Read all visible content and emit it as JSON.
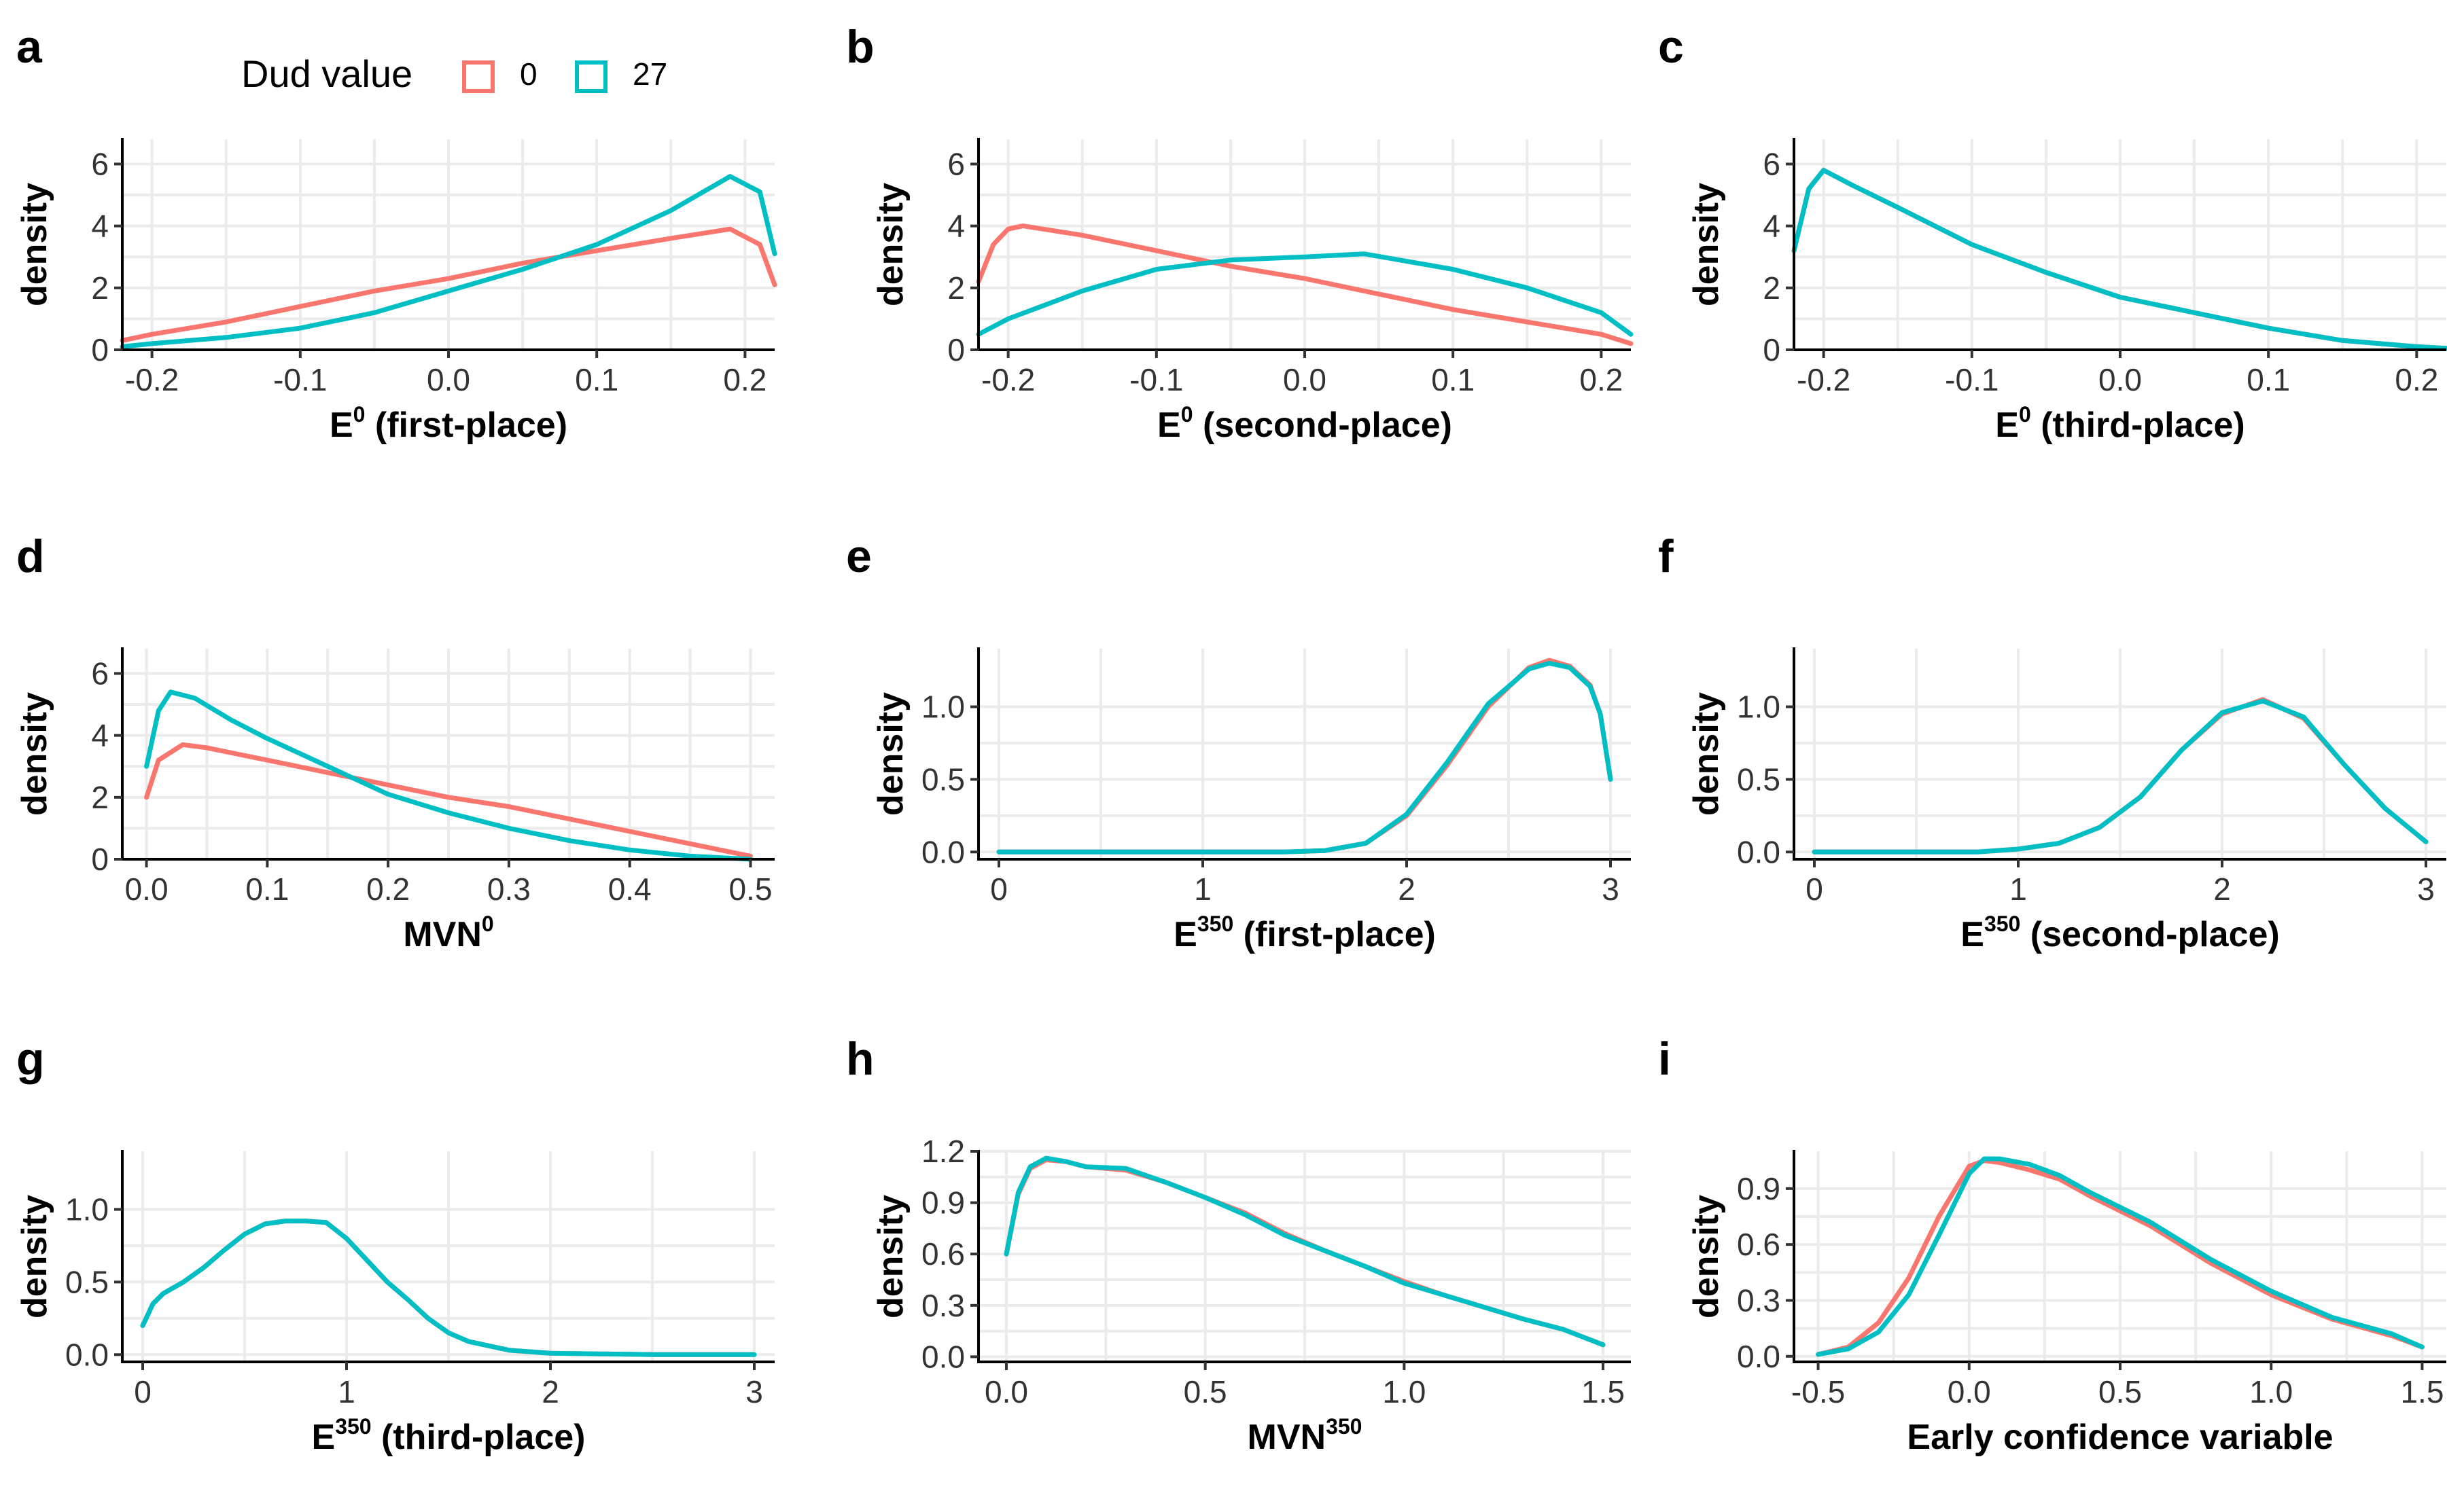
{
  "legend": {
    "title": "Dud value",
    "items": [
      {
        "label": "0",
        "color": "#F8766D"
      },
      {
        "label": "27",
        "color": "#00BFC4"
      }
    ]
  },
  "chart_data": [
    {
      "panel": "a",
      "type": "line",
      "xlabel": "E",
      "xlabel_sup": "0",
      "xlabel_rest": " (first-place)",
      "ylabel": "density",
      "xlim": [
        -0.22,
        0.22
      ],
      "ylim": [
        0,
        6.8
      ],
      "xticks": [
        -0.2,
        -0.1,
        0.0,
        0.1,
        0.2
      ],
      "xtick_labels": [
        "-0.2",
        "-0.1",
        "0.0",
        "0.1",
        "0.2"
      ],
      "yticks": [
        0,
        2,
        4,
        6
      ],
      "ytick_labels": [
        "0",
        "2",
        "4",
        "6"
      ],
      "series": [
        {
          "name": "0",
          "color": "#F8766D",
          "x": [
            -0.22,
            -0.2,
            -0.15,
            -0.1,
            -0.05,
            0.0,
            0.05,
            0.1,
            0.15,
            0.19,
            0.21,
            0.22
          ],
          "y": [
            0.3,
            0.5,
            0.9,
            1.4,
            1.9,
            2.3,
            2.8,
            3.2,
            3.6,
            3.9,
            3.4,
            2.1
          ]
        },
        {
          "name": "27",
          "color": "#00BFC4",
          "x": [
            -0.22,
            -0.2,
            -0.15,
            -0.1,
            -0.05,
            0.0,
            0.05,
            0.1,
            0.15,
            0.19,
            0.21,
            0.22
          ],
          "y": [
            0.1,
            0.2,
            0.4,
            0.7,
            1.2,
            1.9,
            2.6,
            3.4,
            4.5,
            5.6,
            5.1,
            3.1
          ]
        }
      ]
    },
    {
      "panel": "b",
      "type": "line",
      "xlabel": "E",
      "xlabel_sup": "0",
      "xlabel_rest": " (second-place)",
      "ylabel": "density",
      "xlim": [
        -0.22,
        0.22
      ],
      "ylim": [
        0,
        6.8
      ],
      "xticks": [
        -0.2,
        -0.1,
        0.0,
        0.1,
        0.2
      ],
      "xtick_labels": [
        "-0.2",
        "-0.1",
        "0.0",
        "0.1",
        "0.2"
      ],
      "yticks": [
        0,
        2,
        4,
        6
      ],
      "ytick_labels": [
        "0",
        "2",
        "4",
        "6"
      ],
      "series": [
        {
          "name": "0",
          "color": "#F8766D",
          "x": [
            -0.22,
            -0.21,
            -0.2,
            -0.19,
            -0.15,
            -0.1,
            -0.05,
            0.0,
            0.05,
            0.1,
            0.15,
            0.2,
            0.22
          ],
          "y": [
            2.2,
            3.4,
            3.9,
            4.0,
            3.7,
            3.2,
            2.7,
            2.3,
            1.8,
            1.3,
            0.9,
            0.5,
            0.2
          ]
        },
        {
          "name": "27",
          "color": "#00BFC4",
          "x": [
            -0.22,
            -0.2,
            -0.15,
            -0.1,
            -0.05,
            0.0,
            0.04,
            0.1,
            0.15,
            0.2,
            0.22
          ],
          "y": [
            0.5,
            1.0,
            1.9,
            2.6,
            2.9,
            3.0,
            3.1,
            2.6,
            2.0,
            1.2,
            0.5
          ]
        }
      ]
    },
    {
      "panel": "c",
      "type": "line",
      "xlabel": "E",
      "xlabel_sup": "0",
      "xlabel_rest": " (third-place)",
      "ylabel": "density",
      "xlim": [
        -0.22,
        0.22
      ],
      "ylim": [
        0,
        6.8
      ],
      "xticks": [
        -0.2,
        -0.1,
        0.0,
        0.1,
        0.2
      ],
      "xtick_labels": [
        "-0.2",
        "-0.1",
        "0.0",
        "0.1",
        "0.2"
      ],
      "yticks": [
        0,
        2,
        4,
        6
      ],
      "ytick_labels": [
        "0",
        "2",
        "4",
        "6"
      ],
      "series": [
        {
          "name": "0",
          "color": "#F8766D",
          "x": [
            -0.22,
            -0.21,
            -0.2,
            -0.18,
            -0.15,
            -0.1,
            -0.05,
            0.0,
            0.05,
            0.1,
            0.15,
            0.2,
            0.22
          ],
          "y": [
            3.2,
            5.2,
            5.8,
            5.3,
            4.6,
            3.4,
            2.5,
            1.7,
            1.2,
            0.7,
            0.3,
            0.1,
            0.05
          ]
        },
        {
          "name": "27",
          "color": "#00BFC4",
          "x": [
            -0.22,
            -0.21,
            -0.2,
            -0.18,
            -0.15,
            -0.1,
            -0.05,
            0.0,
            0.05,
            0.1,
            0.15,
            0.2,
            0.22
          ],
          "y": [
            3.2,
            5.2,
            5.8,
            5.3,
            4.6,
            3.4,
            2.5,
            1.7,
            1.2,
            0.7,
            0.3,
            0.1,
            0.05
          ]
        }
      ]
    },
    {
      "panel": "d",
      "type": "line",
      "xlabel": "MVN",
      "xlabel_sup": "0",
      "xlabel_rest": "",
      "ylabel": "density",
      "xlim": [
        -0.02,
        0.52
      ],
      "ylim": [
        0,
        6.8
      ],
      "xticks": [
        0.0,
        0.1,
        0.2,
        0.3,
        0.4,
        0.5
      ],
      "xtick_labels": [
        "0.0",
        "0.1",
        "0.2",
        "0.3",
        "0.4",
        "0.5"
      ],
      "yticks": [
        0,
        2,
        4,
        6
      ],
      "ytick_labels": [
        "0",
        "2",
        "4",
        "6"
      ],
      "series": [
        {
          "name": "0",
          "color": "#F8766D",
          "x": [
            0.0,
            0.01,
            0.03,
            0.05,
            0.1,
            0.15,
            0.2,
            0.25,
            0.3,
            0.35,
            0.4,
            0.45,
            0.5
          ],
          "y": [
            2.0,
            3.2,
            3.7,
            3.6,
            3.2,
            2.8,
            2.4,
            2.0,
            1.7,
            1.3,
            0.9,
            0.5,
            0.1
          ]
        },
        {
          "name": "27",
          "color": "#00BFC4",
          "x": [
            0.0,
            0.01,
            0.02,
            0.04,
            0.07,
            0.1,
            0.15,
            0.2,
            0.25,
            0.3,
            0.35,
            0.4,
            0.45,
            0.5
          ],
          "y": [
            3.0,
            4.8,
            5.4,
            5.2,
            4.5,
            3.9,
            3.0,
            2.1,
            1.5,
            1.0,
            0.6,
            0.3,
            0.1,
            0.0
          ]
        }
      ]
    },
    {
      "panel": "e",
      "type": "line",
      "xlabel": "E",
      "xlabel_sup": "350",
      "xlabel_rest": " (first-place)",
      "ylabel": "density",
      "xlim": [
        -0.1,
        3.1
      ],
      "ylim": [
        -0.05,
        1.4
      ],
      "xticks": [
        0,
        1,
        2,
        3
      ],
      "xtick_labels": [
        "0",
        "1",
        "2",
        "3"
      ],
      "yticks": [
        0.0,
        0.5,
        1.0
      ],
      "ytick_labels": [
        "0.0",
        "0.5",
        "1.0"
      ],
      "series": [
        {
          "name": "0",
          "color": "#F8766D",
          "x": [
            0.0,
            1.0,
            1.4,
            1.6,
            1.8,
            2.0,
            2.2,
            2.4,
            2.6,
            2.7,
            2.8,
            2.9,
            2.95,
            3.0
          ],
          "y": [
            0.0,
            0.0,
            0.0,
            0.01,
            0.06,
            0.25,
            0.6,
            1.0,
            1.27,
            1.32,
            1.28,
            1.15,
            0.95,
            0.5
          ]
        },
        {
          "name": "27",
          "color": "#00BFC4",
          "x": [
            0.0,
            1.0,
            1.4,
            1.6,
            1.8,
            2.0,
            2.2,
            2.4,
            2.6,
            2.7,
            2.8,
            2.9,
            2.95,
            3.0
          ],
          "y": [
            0.0,
            0.0,
            0.0,
            0.01,
            0.06,
            0.26,
            0.62,
            1.02,
            1.26,
            1.3,
            1.27,
            1.14,
            0.95,
            0.5
          ]
        }
      ]
    },
    {
      "panel": "f",
      "type": "line",
      "xlabel": "E",
      "xlabel_sup": "350",
      "xlabel_rest": " (second-place)",
      "ylabel": "density",
      "xlim": [
        -0.1,
        3.1
      ],
      "ylim": [
        -0.05,
        1.4
      ],
      "xticks": [
        0,
        1,
        2,
        3
      ],
      "xtick_labels": [
        "0",
        "1",
        "2",
        "3"
      ],
      "yticks": [
        0.0,
        0.5,
        1.0
      ],
      "ytick_labels": [
        "0.0",
        "0.5",
        "1.0"
      ],
      "series": [
        {
          "name": "0",
          "color": "#F8766D",
          "x": [
            0.0,
            0.8,
            1.0,
            1.2,
            1.4,
            1.6,
            1.8,
            2.0,
            2.2,
            2.4,
            2.6,
            2.8,
            3.0
          ],
          "y": [
            0.0,
            0.0,
            0.02,
            0.06,
            0.17,
            0.38,
            0.7,
            0.95,
            1.05,
            0.92,
            0.6,
            0.3,
            0.07
          ]
        },
        {
          "name": "27",
          "color": "#00BFC4",
          "x": [
            0.0,
            0.8,
            1.0,
            1.2,
            1.4,
            1.6,
            1.8,
            2.0,
            2.2,
            2.4,
            2.6,
            2.8,
            3.0
          ],
          "y": [
            0.0,
            0.0,
            0.02,
            0.06,
            0.17,
            0.38,
            0.7,
            0.96,
            1.04,
            0.93,
            0.6,
            0.3,
            0.07
          ]
        }
      ]
    },
    {
      "panel": "g",
      "type": "line",
      "xlabel": "E",
      "xlabel_sup": "350",
      "xlabel_rest": " (third-place)",
      "ylabel": "density",
      "xlim": [
        -0.1,
        3.1
      ],
      "ylim": [
        -0.05,
        1.4
      ],
      "xticks": [
        0,
        1,
        2,
        3
      ],
      "xtick_labels": [
        "0",
        "1",
        "2",
        "3"
      ],
      "yticks": [
        0.0,
        0.5,
        1.0
      ],
      "ytick_labels": [
        "0.0",
        "0.5",
        "1.0"
      ],
      "series": [
        {
          "name": "0",
          "color": "#F8766D",
          "x": [
            0.0,
            0.05,
            0.1,
            0.2,
            0.3,
            0.4,
            0.5,
            0.6,
            0.7,
            0.8,
            0.9,
            1.0,
            1.1,
            1.2,
            1.3,
            1.4,
            1.5,
            1.6,
            1.8,
            2.0,
            2.5,
            3.0
          ],
          "y": [
            0.2,
            0.35,
            0.42,
            0.5,
            0.6,
            0.72,
            0.83,
            0.9,
            0.92,
            0.92,
            0.91,
            0.8,
            0.65,
            0.5,
            0.38,
            0.25,
            0.15,
            0.09,
            0.03,
            0.01,
            0.0,
            0.0
          ]
        },
        {
          "name": "27",
          "color": "#00BFC4",
          "x": [
            0.0,
            0.05,
            0.1,
            0.2,
            0.3,
            0.4,
            0.5,
            0.6,
            0.7,
            0.8,
            0.9,
            1.0,
            1.1,
            1.2,
            1.3,
            1.4,
            1.5,
            1.6,
            1.8,
            2.0,
            2.5,
            3.0
          ],
          "y": [
            0.2,
            0.35,
            0.42,
            0.5,
            0.6,
            0.72,
            0.83,
            0.9,
            0.92,
            0.92,
            0.91,
            0.8,
            0.65,
            0.5,
            0.38,
            0.25,
            0.15,
            0.09,
            0.03,
            0.01,
            0.0,
            0.0
          ]
        }
      ]
    },
    {
      "panel": "h",
      "type": "line",
      "xlabel": "MVN",
      "xlabel_sup": "350",
      "xlabel_rest": "",
      "ylabel": "density",
      "xlim": [
        -0.07,
        1.57
      ],
      "ylim": [
        -0.03,
        1.2
      ],
      "xticks": [
        0.0,
        0.5,
        1.0,
        1.5
      ],
      "xtick_labels": [
        "0.0",
        "0.5",
        "1.0",
        "1.5"
      ],
      "yticks": [
        0.0,
        0.3,
        0.6,
        0.9,
        1.2
      ],
      "ytick_labels": [
        "0.0",
        "0.3",
        "0.6",
        "0.9",
        "1.2"
      ],
      "series": [
        {
          "name": "0",
          "color": "#F8766D",
          "x": [
            0.0,
            0.03,
            0.06,
            0.1,
            0.15,
            0.2,
            0.3,
            0.4,
            0.5,
            0.6,
            0.7,
            0.8,
            0.9,
            1.0,
            1.1,
            1.2,
            1.3,
            1.4,
            1.5
          ],
          "y": [
            0.6,
            0.95,
            1.1,
            1.15,
            1.14,
            1.11,
            1.09,
            1.02,
            0.93,
            0.84,
            0.72,
            0.62,
            0.53,
            0.44,
            0.36,
            0.29,
            0.22,
            0.16,
            0.07
          ]
        },
        {
          "name": "27",
          "color": "#00BFC4",
          "x": [
            0.0,
            0.03,
            0.06,
            0.1,
            0.15,
            0.2,
            0.3,
            0.4,
            0.5,
            0.6,
            0.7,
            0.8,
            0.9,
            1.0,
            1.1,
            1.2,
            1.3,
            1.4,
            1.5
          ],
          "y": [
            0.6,
            0.96,
            1.11,
            1.16,
            1.14,
            1.11,
            1.1,
            1.02,
            0.93,
            0.83,
            0.71,
            0.62,
            0.53,
            0.43,
            0.36,
            0.29,
            0.22,
            0.16,
            0.07
          ]
        }
      ]
    },
    {
      "panel": "i",
      "type": "line",
      "xlabel": "Early confidence variable",
      "xlabel_sup": "",
      "xlabel_rest": "",
      "ylabel": "density",
      "xlim": [
        -0.58,
        1.58
      ],
      "ylim": [
        -0.03,
        1.1
      ],
      "xticks": [
        -0.5,
        0.0,
        0.5,
        1.0,
        1.5
      ],
      "xtick_labels": [
        "-0.5",
        "0.0",
        "0.5",
        "1.0",
        "1.5"
      ],
      "yticks": [
        0.0,
        0.3,
        0.6,
        0.9
      ],
      "ytick_labels": [
        "0.0",
        "0.3",
        "0.6",
        "0.9"
      ],
      "series": [
        {
          "name": "0",
          "color": "#F8766D",
          "x": [
            -0.5,
            -0.4,
            -0.3,
            -0.2,
            -0.1,
            0.0,
            0.05,
            0.1,
            0.2,
            0.3,
            0.4,
            0.6,
            0.8,
            1.0,
            1.2,
            1.4,
            1.5
          ],
          "y": [
            0.01,
            0.05,
            0.18,
            0.42,
            0.75,
            1.02,
            1.05,
            1.04,
            1.0,
            0.95,
            0.86,
            0.7,
            0.5,
            0.33,
            0.2,
            0.11,
            0.05
          ]
        },
        {
          "name": "27",
          "color": "#00BFC4",
          "x": [
            -0.5,
            -0.4,
            -0.3,
            -0.2,
            -0.1,
            0.0,
            0.05,
            0.1,
            0.2,
            0.3,
            0.4,
            0.6,
            0.8,
            1.0,
            1.2,
            1.4,
            1.5
          ],
          "y": [
            0.01,
            0.04,
            0.13,
            0.33,
            0.65,
            0.98,
            1.06,
            1.06,
            1.03,
            0.97,
            0.88,
            0.72,
            0.52,
            0.35,
            0.21,
            0.12,
            0.05
          ]
        }
      ]
    }
  ]
}
